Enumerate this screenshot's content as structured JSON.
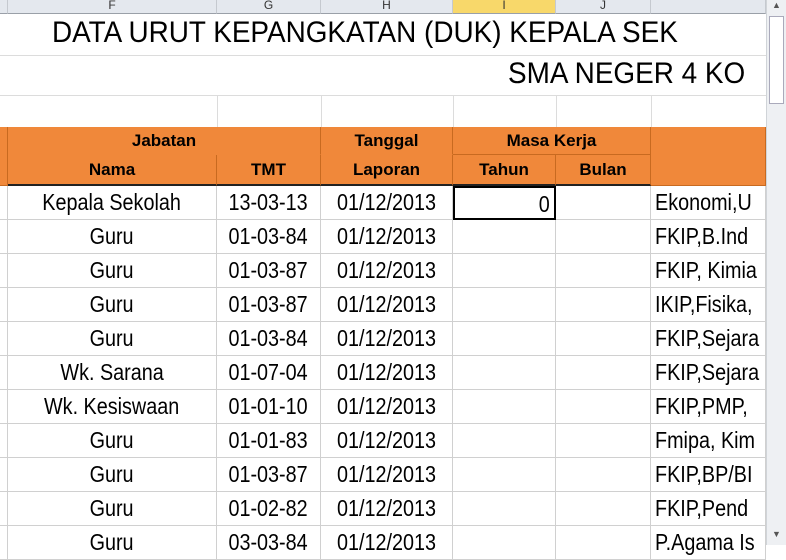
{
  "columns": [
    {
      "letter": "F",
      "selected": false
    },
    {
      "letter": "G",
      "selected": false
    },
    {
      "letter": "H",
      "selected": false
    },
    {
      "letter": "I",
      "selected": true
    },
    {
      "letter": "J",
      "selected": false
    }
  ],
  "title": "DATA URUT KEPANGKATAN (DUK) KEPALA SEK",
  "subtitle": "SMA NEGER 4 KO",
  "header": {
    "jabatan": "Jabatan",
    "nama": "Nama",
    "tmt": "TMT",
    "tanggal": "Tanggal",
    "laporan": "Laporan",
    "masa_kerja": "Masa Kerja",
    "tahun": "Tahun",
    "bulan": "Bulan"
  },
  "rows": [
    {
      "nama": "Kepala Sekolah",
      "tmt": "13-03-13",
      "laporan": "01/12/2013",
      "tahun": "0",
      "bulan": "",
      "pendidikan": "Ekonomi,U"
    },
    {
      "nama": "Guru",
      "tmt": "01-03-84",
      "laporan": "01/12/2013",
      "tahun": "",
      "bulan": "",
      "pendidikan": "FKIP,B.Ind"
    },
    {
      "nama": "Guru",
      "tmt": "01-03-87",
      "laporan": "01/12/2013",
      "tahun": "",
      "bulan": "",
      "pendidikan": "FKIP, Kimia"
    },
    {
      "nama": "Guru",
      "tmt": "01-03-87",
      "laporan": "01/12/2013",
      "tahun": "",
      "bulan": "",
      "pendidikan": "IKIP,Fisika,"
    },
    {
      "nama": "Guru",
      "tmt": "01-03-84",
      "laporan": "01/12/2013",
      "tahun": "",
      "bulan": "",
      "pendidikan": "FKIP,Sejara"
    },
    {
      "nama": "Wk. Sarana",
      "tmt": "01-07-04",
      "laporan": "01/12/2013",
      "tahun": "",
      "bulan": "",
      "pendidikan": "FKIP,Sejara"
    },
    {
      "nama": "Wk. Kesiswaan",
      "tmt": "01-01-10",
      "laporan": "01/12/2013",
      "tahun": "",
      "bulan": "",
      "pendidikan": "FKIP,PMP,"
    },
    {
      "nama": "Guru",
      "tmt": "01-01-83",
      "laporan": "01/12/2013",
      "tahun": "",
      "bulan": "",
      "pendidikan": "Fmipa, Kim"
    },
    {
      "nama": "Guru",
      "tmt": "01-03-87",
      "laporan": "01/12/2013",
      "tahun": "",
      "bulan": "",
      "pendidikan": "FKIP,BP/BI"
    },
    {
      "nama": "Guru",
      "tmt": "01-02-82",
      "laporan": "01/12/2013",
      "tahun": "",
      "bulan": "",
      "pendidikan": "FKIP,Pend"
    },
    {
      "nama": "Guru",
      "tmt": "03-03-84",
      "laporan": "01/12/2013",
      "tahun": "",
      "bulan": "",
      "pendidikan": "P.Agama Is"
    }
  ]
}
